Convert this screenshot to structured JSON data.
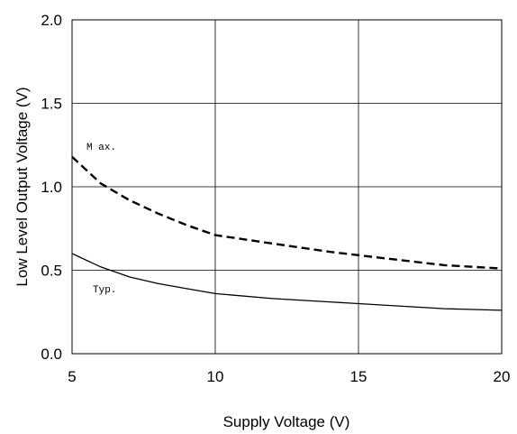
{
  "chart_data": {
    "type": "line",
    "xlabel": "Supply Voltage (V)",
    "ylabel": "Low Level Output Voltage (V)",
    "xlim": [
      5,
      20
    ],
    "ylim": [
      0.0,
      2.0
    ],
    "x_ticks": [
      "5",
      "10",
      "15",
      "20"
    ],
    "y_ticks": [
      "0.0",
      "0.5",
      "1.0",
      "1.5",
      "2.0"
    ],
    "grid": true,
    "legend": "none",
    "series": [
      {
        "name": "Max.",
        "style": "dashed",
        "color": "#000000",
        "x": [
          5,
          6,
          7,
          8,
          9,
          10,
          12,
          14,
          16,
          18,
          20
        ],
        "y": [
          1.18,
          1.02,
          0.92,
          0.84,
          0.77,
          0.71,
          0.66,
          0.61,
          0.57,
          0.53,
          0.51
        ]
      },
      {
        "name": "Typ.",
        "style": "solid",
        "color": "#000000",
        "x": [
          5,
          6,
          7,
          8,
          9,
          10,
          12,
          14,
          16,
          18,
          20
        ],
        "y": [
          0.6,
          0.52,
          0.46,
          0.42,
          0.39,
          0.36,
          0.33,
          0.31,
          0.29,
          0.27,
          0.26
        ]
      }
    ],
    "annotations": [
      "M ax.",
      "Typ."
    ]
  }
}
